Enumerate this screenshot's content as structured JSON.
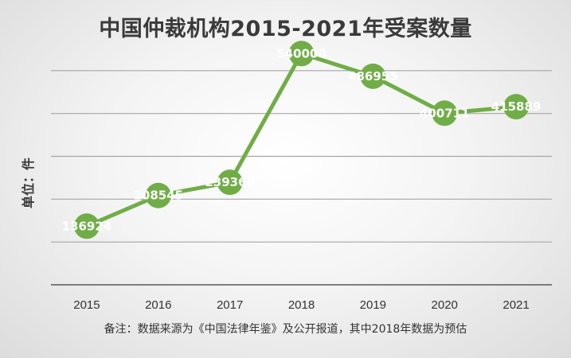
{
  "chart_data": {
    "type": "line",
    "title": "中国仲裁机构2015-2021年受案数量",
    "ylabel": "单位：件",
    "xlabel": "",
    "categories": [
      "2015",
      "2016",
      "2017",
      "2018",
      "2019",
      "2020",
      "2021"
    ],
    "values": [
      136924,
      208545,
      239360,
      540000,
      486955,
      400711,
      415889
    ],
    "data_labels": [
      "136924",
      "208545",
      "239360",
      "540000",
      "486955",
      "400711",
      "415889"
    ],
    "ylim": [
      0,
      600000
    ],
    "y_gridline_step": 100000,
    "grid": true,
    "legend": "none",
    "note": "备注：数据来源为《中国法律年鉴》及公开报道，其中2018年数据为预估",
    "colors": {
      "line": "#70ad47",
      "marker": "#70ad47",
      "data_label": "#ffffff",
      "grid": "#a6a6a6",
      "axis": "#595959"
    }
  }
}
